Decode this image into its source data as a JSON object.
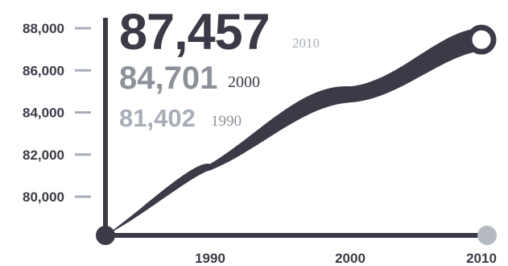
{
  "chart_data": {
    "type": "area",
    "title": "",
    "xlabel": "",
    "ylabel": "",
    "x_ticks": [
      "1990",
      "2000",
      "2010"
    ],
    "y_ticks": [
      "80,000",
      "82,000",
      "84,000",
      "86,000",
      "88,000"
    ],
    "y_tick_values": [
      80000,
      82000,
      84000,
      86000,
      88000
    ],
    "ylim": [
      78000,
      88000
    ],
    "series": [
      {
        "x": "1990",
        "value": 81402,
        "value_label": "81,402",
        "year_label": "1990"
      },
      {
        "x": "2000",
        "value": 84701,
        "value_label": "84,701",
        "year_label": "2000"
      },
      {
        "x": "2010",
        "value": 87457,
        "value_label": "87,457",
        "year_label": "2010"
      }
    ],
    "colors": {
      "axis": "#3a3b47",
      "curve": "#3a3b47",
      "label_2010": "#3a3b47",
      "label_2000": "#8d9199",
      "label_1990": "#a8aeb8",
      "year_2010": "#a8aeb8",
      "year_2000": "#3a3b47",
      "year_1990": "#8d9199",
      "end_dot": "#b5bac2"
    }
  }
}
